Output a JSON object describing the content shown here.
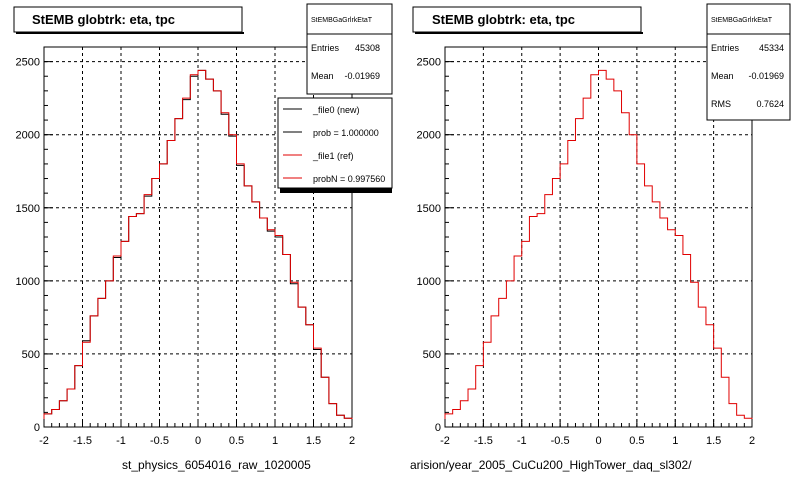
{
  "colors": {
    "new_line": "#000000",
    "ref_line": "#e00000",
    "grid": "#000000",
    "frame": "#000000",
    "background": "#ffffff"
  },
  "left": {
    "title": "StEMB globtrk: eta, tpc",
    "stats": {
      "name": "StEMBGaGrlrkEtaT",
      "entries_label": "Entries",
      "entries_value": "45308",
      "mean_label": "Mean",
      "mean_value": "-0.01969"
    },
    "legend": [
      {
        "label": "_file0 (new)",
        "color": "#000000"
      },
      {
        "label": "prob = 1.000000",
        "color": "#000000"
      },
      {
        "label": "_file1 (ref)",
        "color": "#e00000"
      },
      {
        "label": "probN = 0.997560",
        "color": "#e00000"
      }
    ],
    "footer": "st_physics_6054016_raw_1020005"
  },
  "right": {
    "title": "StEMB globtrk: eta, tpc",
    "stats": {
      "name": "StEMBGaGrlrkEtaT",
      "entries_label": "Entries",
      "entries_value": "45334",
      "mean_label": "Mean",
      "mean_value": "-0.01969",
      "rms_label": "RMS",
      "rms_value": "0.7624"
    },
    "footer": "arision/year_2005_CuCu200_HighTower_daq_sl302/"
  },
  "chart_data": [
    {
      "type": "line",
      "subtype": "histogram-step",
      "title": "StEMB globtrk: eta, tpc",
      "xlim": [
        -2,
        2
      ],
      "ylim": [
        0,
        2600
      ],
      "x_ticks": [
        "-2",
        "-1.5",
        "-1",
        "-0.5",
        "0",
        "0.5",
        "1",
        "1.5",
        "2"
      ],
      "y_ticks": [
        "0",
        "500",
        "1000",
        "1500",
        "2000",
        "2500"
      ],
      "grid": true,
      "legend_position": "top-right",
      "bin_edges": [
        -2.0,
        -1.9,
        -1.8,
        -1.7,
        -1.6,
        -1.5,
        -1.4,
        -1.3,
        -1.2,
        -1.1,
        -1.0,
        -0.9,
        -0.8,
        -0.7,
        -0.6,
        -0.5,
        -0.4,
        -0.3,
        -0.2,
        -0.1,
        0.0,
        0.1,
        0.2,
        0.3,
        0.4,
        0.5,
        0.6,
        0.7,
        0.8,
        0.9,
        1.0,
        1.1,
        1.2,
        1.3,
        1.4,
        1.5,
        1.6,
        1.7,
        1.8,
        1.9,
        2.0
      ],
      "series": [
        {
          "name": "_file0 (new)",
          "color": "#000000",
          "values": [
            90,
            120,
            180,
            260,
            420,
            590,
            760,
            880,
            1000,
            1160,
            1270,
            1440,
            1460,
            1580,
            1700,
            1800,
            1960,
            2110,
            2240,
            2400,
            2440,
            2380,
            2300,
            2140,
            1990,
            1790,
            1650,
            1540,
            1430,
            1340,
            1300,
            1180,
            980,
            820,
            700,
            530,
            340,
            160,
            80,
            60
          ]
        },
        {
          "name": "_file1 (ref)",
          "color": "#e00000",
          "values": [
            90,
            120,
            180,
            260,
            420,
            580,
            760,
            880,
            1000,
            1170,
            1270,
            1440,
            1460,
            1590,
            1700,
            1800,
            1960,
            2110,
            2250,
            2410,
            2440,
            2380,
            2300,
            2150,
            2000,
            1800,
            1650,
            1540,
            1430,
            1350,
            1310,
            1180,
            990,
            820,
            700,
            540,
            340,
            160,
            80,
            60
          ]
        }
      ]
    },
    {
      "type": "line",
      "subtype": "histogram-step",
      "title": "StEMB globtrk: eta, tpc",
      "xlim": [
        -2,
        2
      ],
      "ylim": [
        0,
        2600
      ],
      "x_ticks": [
        "-2",
        "-1.5",
        "-1",
        "-0.5",
        "0",
        "0.5",
        "1",
        "1.5",
        "2"
      ],
      "y_ticks": [
        "0",
        "500",
        "1000",
        "1500",
        "2000",
        "2500"
      ],
      "grid": true,
      "bin_edges": [
        -2.0,
        -1.9,
        -1.8,
        -1.7,
        -1.6,
        -1.5,
        -1.4,
        -1.3,
        -1.2,
        -1.1,
        -1.0,
        -0.9,
        -0.8,
        -0.7,
        -0.6,
        -0.5,
        -0.4,
        -0.3,
        -0.2,
        -0.1,
        0.0,
        0.1,
        0.2,
        0.3,
        0.4,
        0.5,
        0.6,
        0.7,
        0.8,
        0.9,
        1.0,
        1.1,
        1.2,
        1.3,
        1.4,
        1.5,
        1.6,
        1.7,
        1.8,
        1.9,
        2.0
      ],
      "series": [
        {
          "color": "#e00000",
          "values": [
            90,
            120,
            180,
            260,
            420,
            580,
            760,
            880,
            1000,
            1170,
            1270,
            1440,
            1460,
            1590,
            1700,
            1800,
            1960,
            2110,
            2250,
            2410,
            2440,
            2380,
            2300,
            2150,
            2000,
            1800,
            1650,
            1540,
            1430,
            1350,
            1310,
            1180,
            990,
            820,
            700,
            540,
            340,
            160,
            80,
            60
          ]
        }
      ]
    }
  ]
}
